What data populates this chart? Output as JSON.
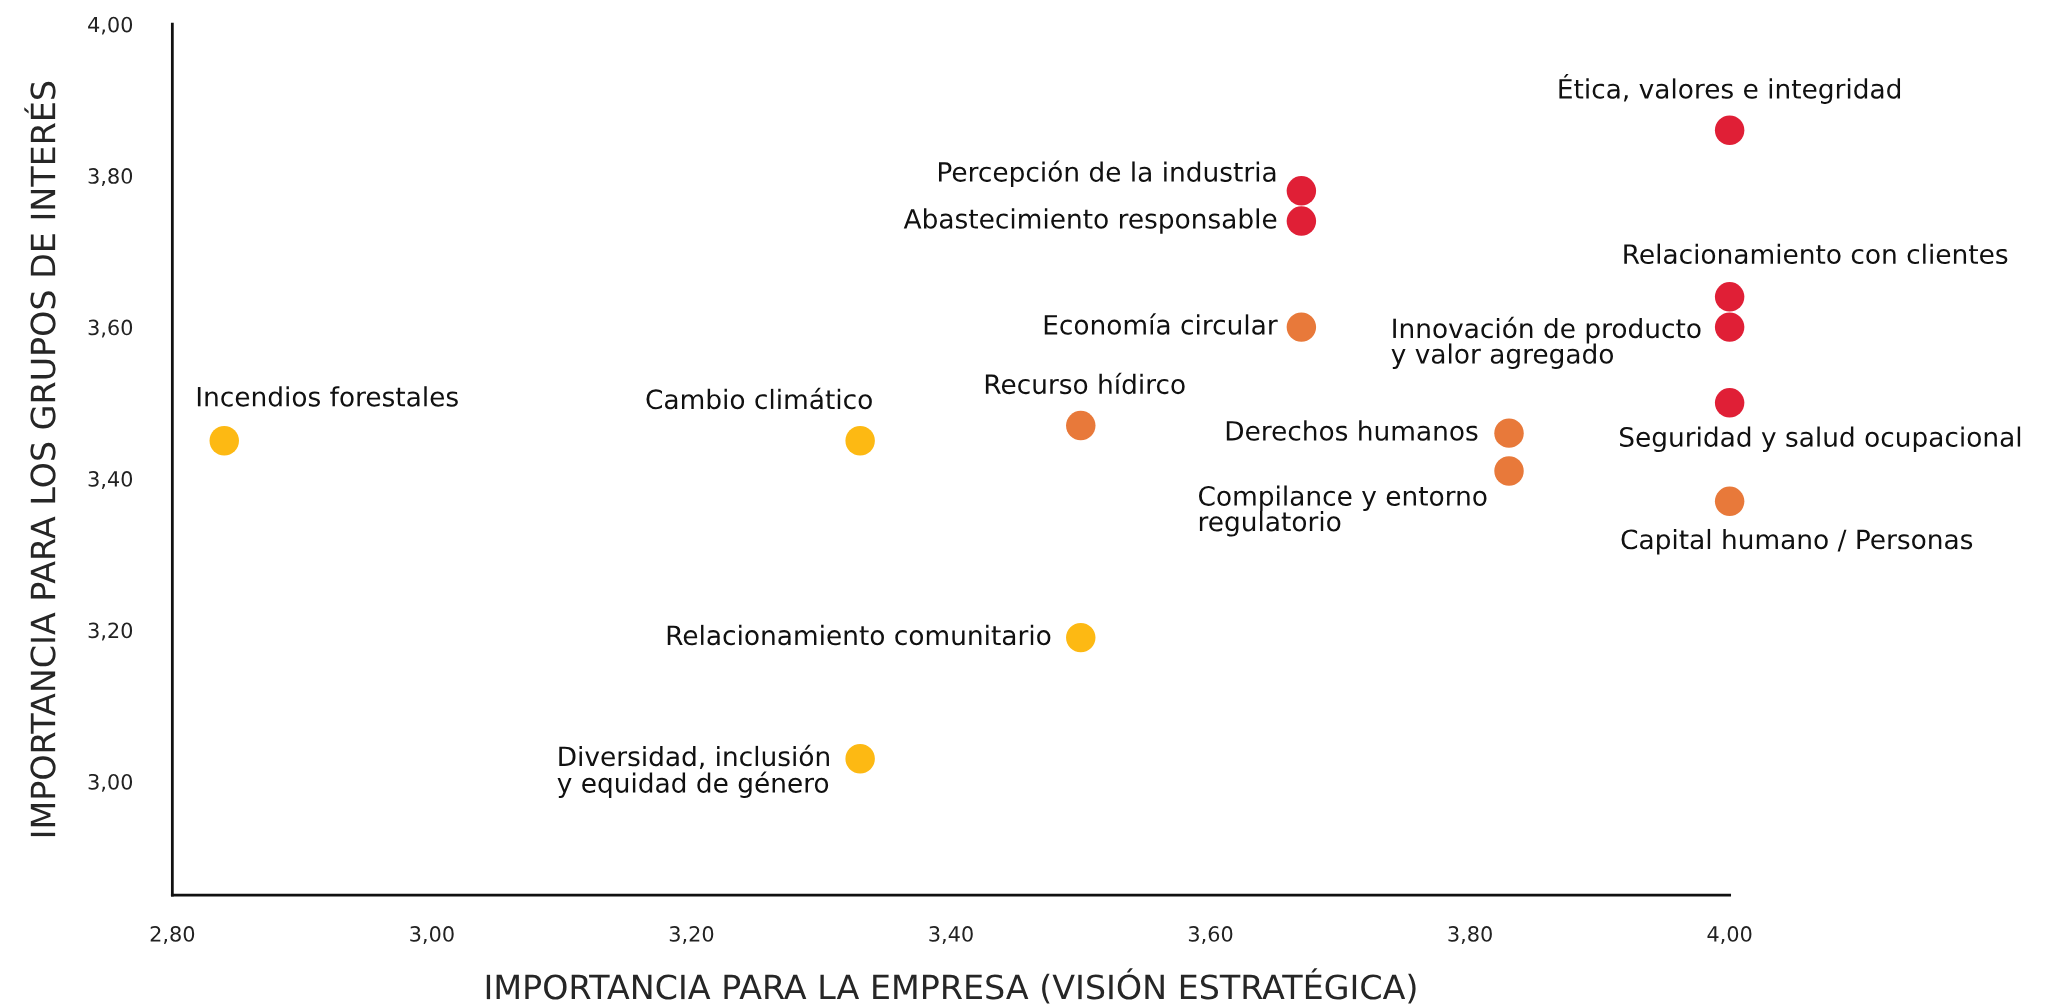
{
  "chart_data": {
    "type": "scatter",
    "xlabel": "IMPORTANCIA PARA LA EMPRESA (VISIÓN ESTRATÉGICA)",
    "ylabel": "IMPORTANCIA PARA LOS GRUPOS DE INTERÉS",
    "marker": "circle",
    "grid": false,
    "legend": false,
    "xlim": [
      2.8,
      4.0
    ],
    "xticks": [
      {
        "value": 2.8,
        "label": "2,80"
      },
      {
        "value": 3.0,
        "label": "3,00"
      },
      {
        "value": 3.2,
        "label": "3,20"
      },
      {
        "value": 3.4,
        "label": "3,40"
      },
      {
        "value": 3.6,
        "label": "3,60"
      },
      {
        "value": 3.8,
        "label": "3,80"
      },
      {
        "value": 4.0,
        "label": "4,00"
      }
    ],
    "ylim": [
      2.85,
      4.0
    ],
    "yticks": [
      {
        "value": 3.0,
        "label": "3,00"
      },
      {
        "value": 3.2,
        "label": "3,20"
      },
      {
        "value": 3.4,
        "label": "3,40"
      },
      {
        "value": 3.6,
        "label": "3,60"
      },
      {
        "value": 3.8,
        "label": "3,80"
      },
      {
        "value": 4.0,
        "label": "4,00"
      }
    ],
    "series": [
      {
        "color": "#fdb913",
        "x": [
          2.84,
          3.33,
          3.5,
          3.33
        ],
        "values": [
          3.45,
          3.45,
          3.19,
          3.03
        ]
      },
      {
        "color": "#e8793a",
        "x": [
          3.5,
          3.67,
          3.83,
          3.83,
          4.0
        ],
        "values": [
          3.47,
          3.6,
          3.46,
          3.41,
          3.37
        ]
      },
      {
        "color": "#e01f36",
        "x": [
          3.67,
          3.67,
          4.0,
          4.0,
          4.0,
          4.0
        ],
        "values": [
          3.78,
          3.74,
          3.86,
          3.64,
          3.6,
          3.5
        ]
      }
    ],
    "annotations": [
      {
        "text": "Incendios forestales",
        "x": 2.84,
        "y": 3.45
      },
      {
        "text": "Cambio climático",
        "x": 3.33,
        "y": 3.45
      },
      {
        "text": "Recurso hídirco",
        "x": 3.5,
        "y": 3.47
      },
      {
        "text": "Relacionamiento comunitario",
        "x": 3.5,
        "y": 3.19
      },
      {
        "text": "Diversidad, inclusión\ny equidad de género",
        "x": 3.33,
        "y": 3.03
      },
      {
        "text": "Economía circular",
        "x": 3.67,
        "y": 3.6
      },
      {
        "text": "Percepción de la industria",
        "x": 3.67,
        "y": 3.78
      },
      {
        "text": "Abastecimiento responsable",
        "x": 3.67,
        "y": 3.74
      },
      {
        "text": "Derechos humanos",
        "x": 3.83,
        "y": 3.46
      },
      {
        "text": "Compilance y entorno\nregulatorio",
        "x": 3.83,
        "y": 3.41
      },
      {
        "text": "Ética, valores e integridad",
        "x": 4.0,
        "y": 3.86
      },
      {
        "text": "Relacionamiento con clientes",
        "x": 4.0,
        "y": 3.64
      },
      {
        "text": "Innovación de producto\ny valor agregado",
        "x": 4.0,
        "y": 3.6
      },
      {
        "text": "Seguridad y salud ocupacional",
        "x": 4.0,
        "y": 3.5
      },
      {
        "text": "Capital humano / Personas",
        "x": 4.0,
        "y": 3.37
      }
    ]
  }
}
